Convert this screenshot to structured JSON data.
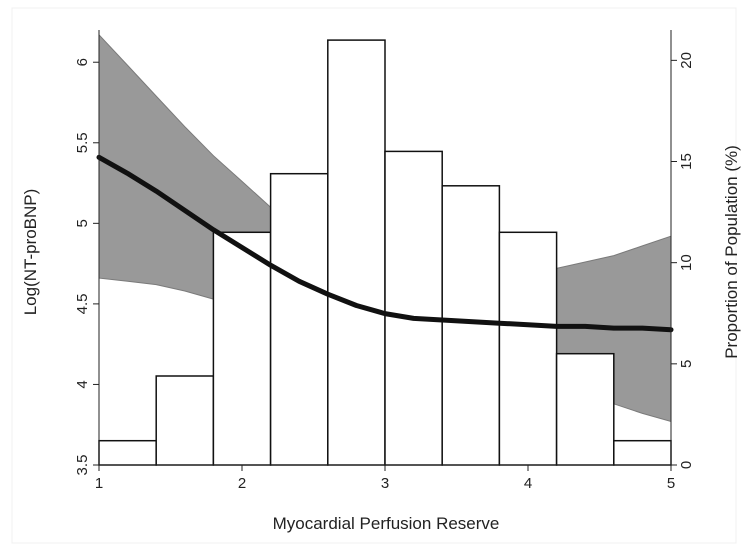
{
  "chart_data": {
    "type": "bar",
    "xlabel": "Myocardial Perfusion Reserve",
    "ylabel": "Log(NT-proBNP)",
    "y2label": "Proportion of Population (%)",
    "xlim": [
      1,
      5
    ],
    "ylim": [
      3.5,
      6.2
    ],
    "y2lim": [
      0,
      21.5
    ],
    "x_ticks": [
      "1",
      "2",
      "3",
      "4",
      "5"
    ],
    "y_ticks": [
      "3.5",
      "4",
      "4.5",
      "5",
      "5.5",
      "6"
    ],
    "y2_ticks": [
      "0",
      "5",
      "10",
      "15",
      "20"
    ],
    "histogram": {
      "axis": "right",
      "bin_edges": [
        1.0,
        1.4,
        1.8,
        2.2,
        2.6,
        3.0,
        3.4,
        3.8,
        4.2,
        4.6,
        5.0
      ],
      "values": [
        1.2,
        4.4,
        11.5,
        14.4,
        21.0,
        15.5,
        13.8,
        11.5,
        5.5,
        1.2
      ]
    },
    "fit": {
      "axis": "left",
      "x": [
        1.0,
        1.2,
        1.4,
        1.6,
        1.8,
        2.0,
        2.2,
        2.4,
        2.6,
        2.8,
        3.0,
        3.2,
        3.4,
        3.6,
        3.8,
        4.0,
        4.2,
        4.4,
        4.6,
        4.8,
        5.0
      ],
      "y": [
        5.41,
        5.31,
        5.2,
        5.08,
        4.96,
        4.85,
        4.74,
        4.64,
        4.56,
        4.49,
        4.44,
        4.41,
        4.4,
        4.39,
        4.38,
        4.37,
        4.36,
        4.36,
        4.35,
        4.35,
        4.34
      ],
      "lower": [
        4.66,
        4.64,
        4.62,
        4.58,
        4.53,
        4.47,
        4.41,
        4.34,
        4.27,
        4.21,
        4.15,
        4.1,
        4.08,
        4.07,
        4.05,
        4.02,
        3.98,
        3.93,
        3.88,
        3.82,
        3.77
      ],
      "upper": [
        6.17,
        5.98,
        5.79,
        5.6,
        5.42,
        5.26,
        5.1,
        4.97,
        4.86,
        4.77,
        4.72,
        4.7,
        4.69,
        4.68,
        4.68,
        4.69,
        4.72,
        4.76,
        4.8,
        4.86,
        4.92
      ]
    },
    "colors": {
      "band": "#999999",
      "band_edge": "#7a7a7a",
      "line": "#111111",
      "bar_fill": "#ffffff",
      "bar_stroke": "#111111",
      "axis": "#222222"
    },
    "grid": false
  }
}
